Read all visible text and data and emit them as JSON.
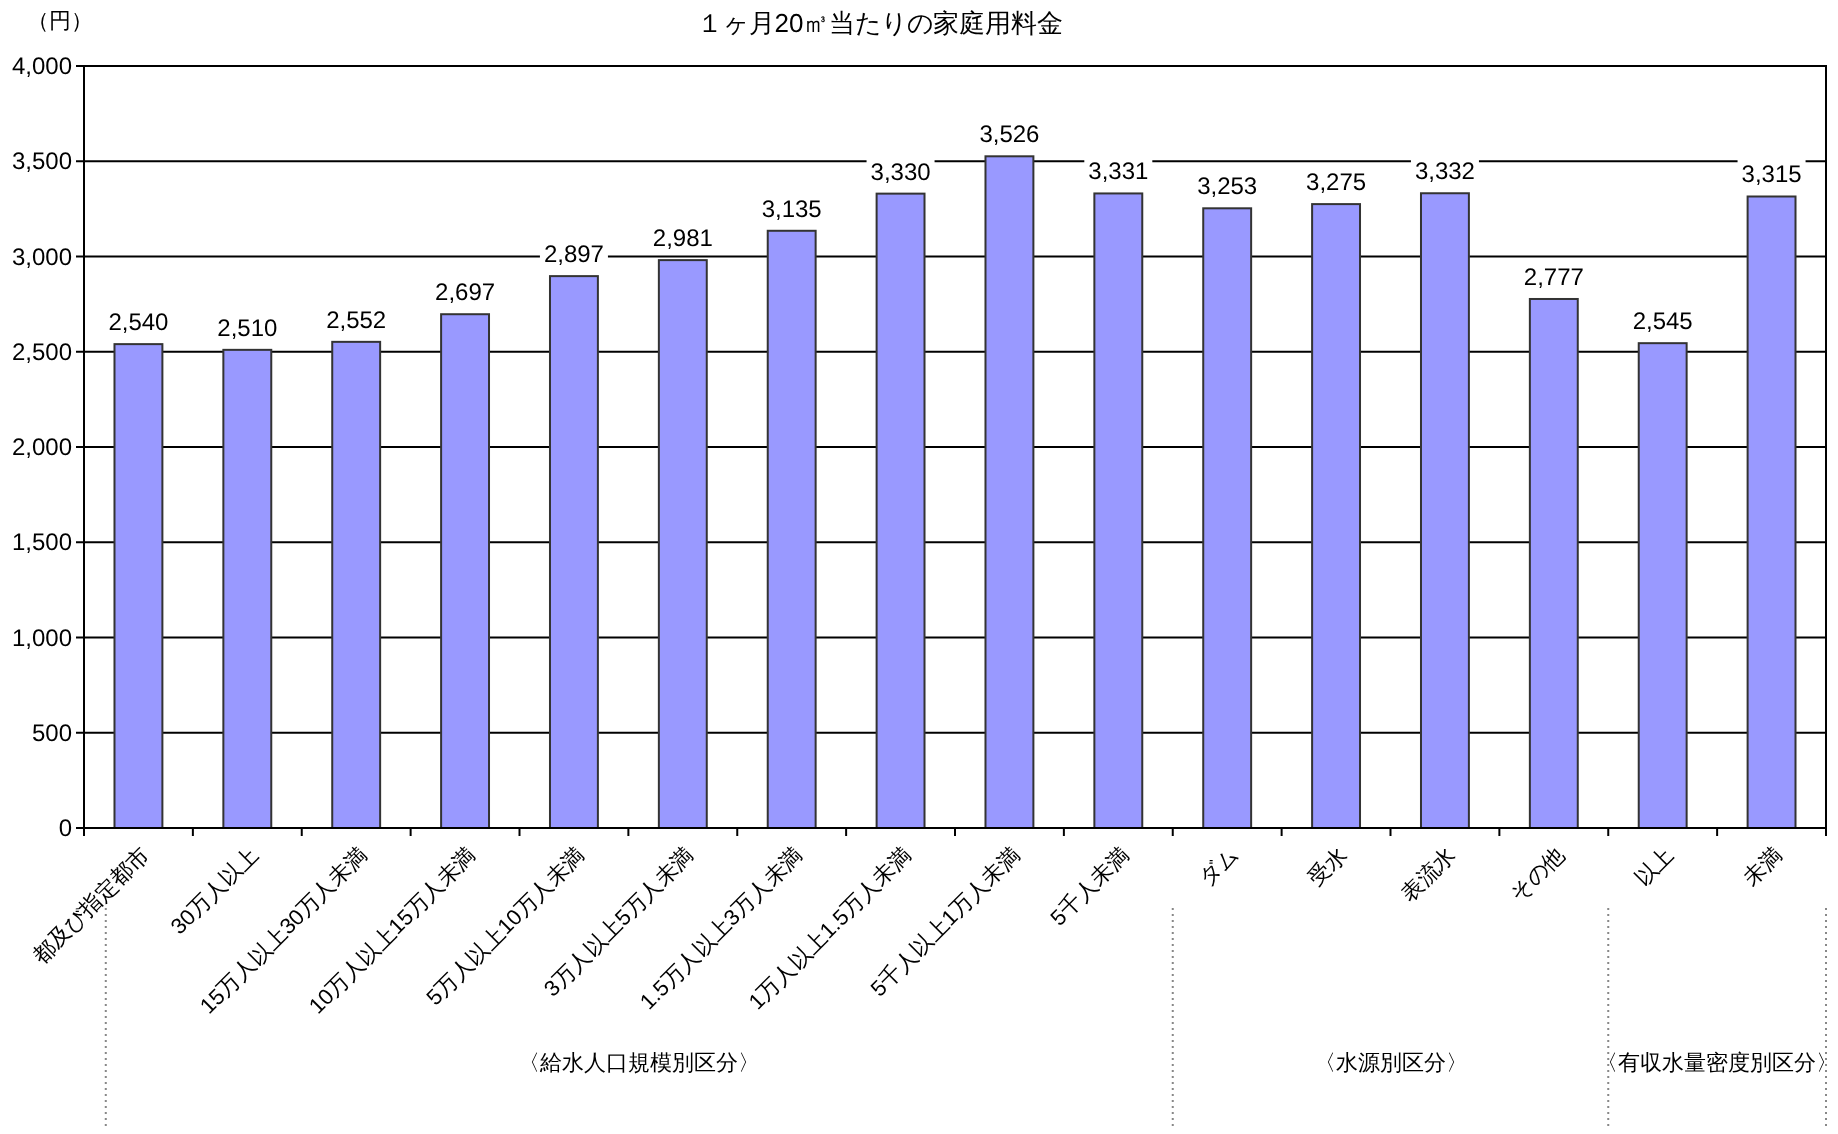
{
  "chart_data": {
    "type": "bar",
    "title": "１ヶ月20㎥当たりの家庭用料金",
    "ylabel": "（円）",
    "categories": [
      "都及び指定都市",
      "30万人以上",
      "15万人以上30万人未満",
      "10万人以上15万人未満",
      "5万人以上10万人未満",
      "3万人以上5万人未満",
      "1.5万人以上3万人未満",
      "1万人以上1.5万人未満",
      "5千人以上1万人未満",
      "5千人未満",
      "ダム",
      "受水",
      "表流水",
      "その他",
      "以上",
      "未満"
    ],
    "values": [
      2540,
      2510,
      2552,
      2697,
      2897,
      2981,
      3135,
      3330,
      3526,
      3331,
      3253,
      3275,
      3332,
      2777,
      2545,
      3315
    ],
    "value_labels": [
      "2,540",
      "2,510",
      "2,552",
      "2,697",
      "2,897",
      "2,981",
      "3,135",
      "3,330",
      "3,526",
      "3,331",
      "3,253",
      "3,275",
      "3,332",
      "2,777",
      "2,545",
      "3,315"
    ],
    "color": "#9999ff",
    "ylim": [
      0,
      4000
    ],
    "yticks": [
      0,
      {
        "value": 500,
        "label": "500"
      },
      {
        "value": 1000,
        "label": "1,000"
      },
      {
        "value": 1500,
        "label": "1,500"
      },
      {
        "value": 2000,
        "label": "2,000"
      },
      {
        "value": 2500,
        "label": "2,500"
      },
      {
        "value": 3000,
        "label": "3,000"
      },
      {
        "value": 3500,
        "label": "3,500"
      },
      {
        "value": 4000,
        "label": "4,000"
      }
    ],
    "grid": "y",
    "annotations": [
      "〈給水人口規模別区分〉",
      "〈水源別区分〉",
      "〈有収水量密度別区分〉"
    ]
  }
}
